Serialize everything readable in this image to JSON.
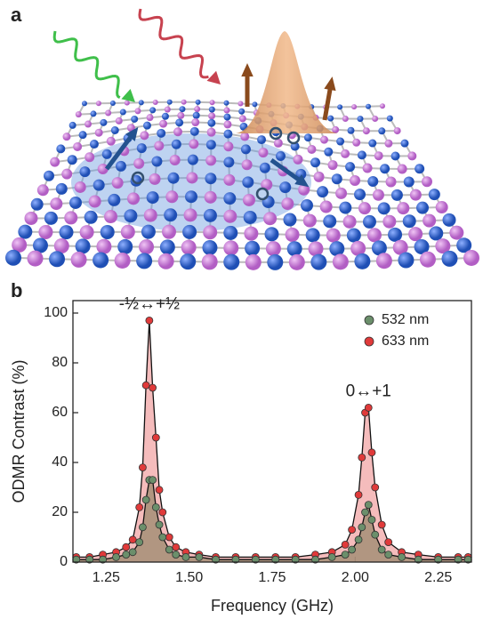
{
  "panel_labels": [
    "a",
    "b"
  ],
  "chart_data": {
    "type": "scatter",
    "x_label": "Frequency (GHz)",
    "y_label": "ODMR Contrast (%)",
    "annotations": [
      "-½↔+½",
      "0↔+1"
    ],
    "xlim": [
      1.15,
      2.35
    ],
    "xticks": [
      1.25,
      {
        "value": 1.5,
        "label": "1.50"
      },
      1.75,
      {
        "value": 2.0,
        "label": "2.00"
      },
      2.25
    ],
    "ylim": [
      0,
      105
    ],
    "yticks": [
      0,
      20,
      40,
      60,
      80,
      100
    ],
    "legend": "upper right",
    "x": [
      1.16,
      1.2,
      1.24,
      1.28,
      1.31,
      1.33,
      1.35,
      1.36,
      1.37,
      1.38,
      1.39,
      1.4,
      1.41,
      1.42,
      1.44,
      1.46,
      1.49,
      1.53,
      1.58,
      1.64,
      1.7,
      1.76,
      1.82,
      1.88,
      1.93,
      1.97,
      1.99,
      2.01,
      2.02,
      2.03,
      2.04,
      2.05,
      2.06,
      2.08,
      2.1,
      2.14,
      2.19,
      2.25,
      2.31,
      2.34
    ],
    "series": [
      {
        "name": "532 nm",
        "color": "#6b8f6b",
        "fill": "#9a8a6e",
        "values": [
          1,
          1,
          1,
          2,
          3,
          4,
          8,
          14,
          25,
          33,
          33,
          22,
          15,
          10,
          5,
          3,
          2,
          2,
          1,
          1,
          1,
          1,
          1,
          1,
          2,
          3,
          5,
          9,
          14,
          20,
          23,
          17,
          11,
          5,
          3,
          2,
          1,
          1,
          1,
          1
        ]
      },
      {
        "name": "633 nm",
        "color": "#e03a3a",
        "fill": "#f2a5a5",
        "values": [
          2,
          2,
          3,
          4,
          6,
          9,
          22,
          38,
          71,
          97,
          70,
          50,
          29,
          20,
          10,
          6,
          4,
          3,
          2,
          2,
          2,
          2,
          2,
          3,
          4,
          7,
          13,
          27,
          42,
          60,
          62,
          44,
          30,
          15,
          8,
          4,
          3,
          2,
          2,
          2
        ]
      }
    ]
  }
}
